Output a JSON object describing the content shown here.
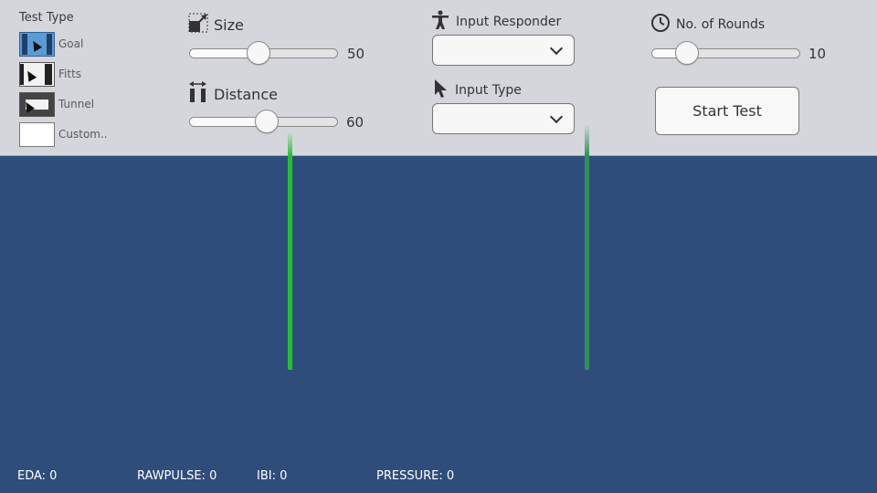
{
  "test_type": {
    "title": "Test Type",
    "items": [
      {
        "label": "Goal",
        "icon": "goal-thumbnail-icon"
      },
      {
        "label": "Fitts",
        "icon": "fitts-thumbnail-icon"
      },
      {
        "label": "Tunnel",
        "icon": "tunnel-thumbnail-icon"
      },
      {
        "label": "Custom..",
        "icon": "custom-thumbnail-icon"
      }
    ]
  },
  "size": {
    "label": "Size",
    "value": "50",
    "icon": "size-icon"
  },
  "distance": {
    "label": "Distance",
    "value": "60",
    "icon": "distance-icon"
  },
  "input_responder": {
    "label": "Input Responder",
    "value": "",
    "icon": "accessibility-person-icon"
  },
  "input_type": {
    "label": "Input Type",
    "value": "",
    "icon": "pointer-cursor-icon"
  },
  "rounds": {
    "label": "No. of Rounds",
    "value": "10",
    "icon": "clock-icon"
  },
  "start_button": {
    "label": "Start Test"
  },
  "status": {
    "eda": "EDA: 0",
    "rawpulse": "RAWPULSE: 0",
    "ibi": "IBI: 0",
    "pressure": "PRESSURE: 0"
  },
  "colors": {
    "toolbar_bg": "#d5d6dc",
    "canvas_bg": "#2f4d7a",
    "target_left": "#22c02e",
    "target_right": "#2f8f55",
    "goal_selected": "#5b9bd5"
  }
}
